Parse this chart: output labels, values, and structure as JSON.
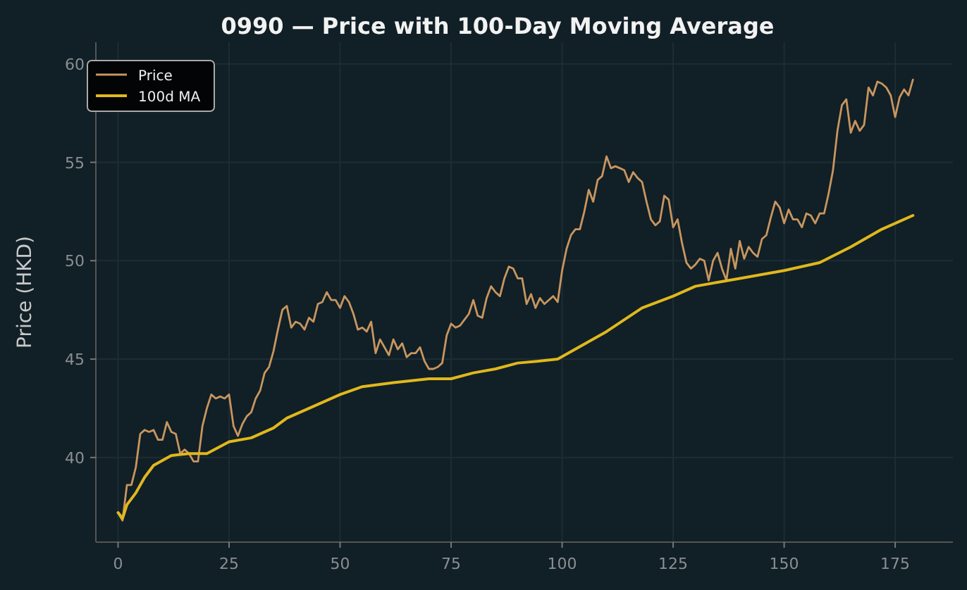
{
  "chart_data": {
    "type": "line",
    "title": "0990 — Price with 100-Day Moving Average",
    "ylabel": "Price (HKD)",
    "xlim": [
      -5,
      188
    ],
    "xticks": [
      0,
      25,
      50,
      75,
      100,
      125,
      150,
      175
    ],
    "ylim": [
      35.7,
      61.1
    ],
    "yticks": [
      40,
      45,
      50,
      55,
      60
    ],
    "grid": true,
    "legend": "top left",
    "line_style": "solid",
    "marker": "none",
    "series": [
      {
        "name": "Price",
        "color": "#c8965f",
        "x": [
          0,
          1,
          2,
          3,
          4,
          5,
          6,
          7,
          8,
          9,
          10,
          11,
          12,
          13,
          14,
          15,
          16,
          17,
          18,
          19,
          20,
          21,
          22,
          23,
          24,
          25,
          26,
          27,
          28,
          29,
          30,
          31,
          32,
          33,
          34,
          35,
          36,
          37,
          38,
          39,
          40,
          41,
          42,
          43,
          44,
          45,
          46,
          47,
          48,
          49,
          50,
          51,
          52,
          53,
          54,
          55,
          56,
          57,
          58,
          59,
          60,
          61,
          62,
          63,
          64,
          65,
          66,
          67,
          68,
          69,
          70,
          71,
          72,
          73,
          74,
          75,
          76,
          77,
          78,
          79,
          80,
          81,
          82,
          83,
          84,
          85,
          86,
          87,
          88,
          89,
          90,
          91,
          92,
          93,
          94,
          95,
          96,
          97,
          98,
          99,
          100,
          101,
          102,
          103,
          104,
          105,
          106,
          107,
          108,
          109,
          110,
          111,
          112,
          113,
          114,
          115,
          116,
          117,
          118,
          119,
          120,
          121,
          122,
          123,
          124,
          125,
          126,
          127,
          128,
          129,
          130,
          131,
          132,
          133,
          134,
          135,
          136,
          137,
          138,
          139,
          140,
          141,
          142,
          143,
          144,
          145,
          146,
          147,
          148,
          149,
          150,
          151,
          152,
          153,
          154,
          155,
          156,
          157,
          158,
          159,
          160,
          161,
          162,
          163,
          164,
          165,
          166,
          167,
          168,
          169,
          170,
          171,
          172,
          173,
          174,
          175,
          176,
          177,
          178,
          179
        ],
        "values": [
          37.2,
          36.8,
          38.6,
          38.6,
          39.5,
          41.2,
          41.4,
          41.3,
          41.4,
          40.9,
          40.9,
          41.8,
          41.3,
          41.2,
          40.2,
          40.4,
          40.2,
          39.8,
          39.8,
          41.6,
          42.5,
          43.2,
          43.0,
          43.1,
          43.0,
          43.2,
          41.6,
          41.1,
          41.7,
          42.1,
          42.3,
          43.0,
          43.4,
          44.3,
          44.6,
          45.4,
          46.5,
          47.5,
          47.7,
          46.6,
          46.9,
          46.8,
          46.5,
          47.1,
          46.9,
          47.8,
          47.9,
          48.4,
          48.0,
          48.0,
          47.6,
          48.2,
          47.9,
          47.3,
          46.5,
          46.6,
          46.4,
          46.9,
          45.3,
          46.0,
          45.6,
          45.2,
          46.0,
          45.5,
          45.8,
          45.1,
          45.3,
          45.3,
          45.6,
          44.9,
          44.5,
          44.5,
          44.6,
          44.8,
          46.2,
          46.8,
          46.6,
          46.7,
          47.0,
          47.3,
          48.0,
          47.2,
          47.1,
          48.1,
          48.7,
          48.4,
          48.2,
          49.1,
          49.7,
          49.6,
          49.1,
          49.1,
          47.8,
          48.3,
          47.6,
          48.1,
          47.8,
          48.0,
          48.2,
          47.9,
          49.5,
          50.6,
          51.3,
          51.6,
          51.6,
          52.5,
          53.6,
          53.0,
          54.1,
          54.3,
          55.3,
          54.7,
          54.8,
          54.7,
          54.6,
          54.0,
          54.5,
          54.2,
          54.0,
          53.0,
          52.1,
          51.8,
          52.0,
          53.3,
          53.1,
          51.7,
          52.1,
          50.9,
          49.9,
          49.6,
          49.8,
          50.1,
          50.0,
          49.0,
          50.0,
          50.4,
          49.6,
          49.0,
          50.6,
          49.6,
          51.0,
          50.1,
          50.7,
          50.4,
          50.2,
          51.1,
          51.3,
          52.2,
          53.0,
          52.7,
          51.9,
          52.6,
          52.1,
          52.1,
          51.7,
          52.4,
          52.3,
          51.9,
          52.4,
          52.4,
          53.4,
          54.6,
          56.6,
          57.9,
          58.2,
          56.5,
          57.1,
          56.6,
          56.9,
          58.8,
          58.4,
          59.1,
          59.0,
          58.8,
          58.4,
          57.3,
          58.3,
          58.7,
          58.4,
          59.2
        ]
      },
      {
        "name": "100d MA",
        "color": "#e0b81d",
        "x": [
          0,
          1,
          2,
          4,
          6,
          8,
          12,
          16,
          20,
          25,
          30,
          35,
          38,
          45,
          50,
          55,
          62,
          70,
          75,
          80,
          85,
          90,
          95,
          99,
          110,
          118,
          125,
          130,
          135,
          140,
          150,
          158,
          165,
          172,
          179
        ],
        "values": [
          37.2,
          36.9,
          37.6,
          38.2,
          39.0,
          39.6,
          40.1,
          40.2,
          40.2,
          40.8,
          41.0,
          41.5,
          42.0,
          42.7,
          43.2,
          43.6,
          43.8,
          44.0,
          44.0,
          44.3,
          44.5,
          44.8,
          44.9,
          45.0,
          46.4,
          47.6,
          48.2,
          48.7,
          48.9,
          49.1,
          49.5,
          49.9,
          50.7,
          51.6,
          52.3
        ]
      }
    ]
  }
}
